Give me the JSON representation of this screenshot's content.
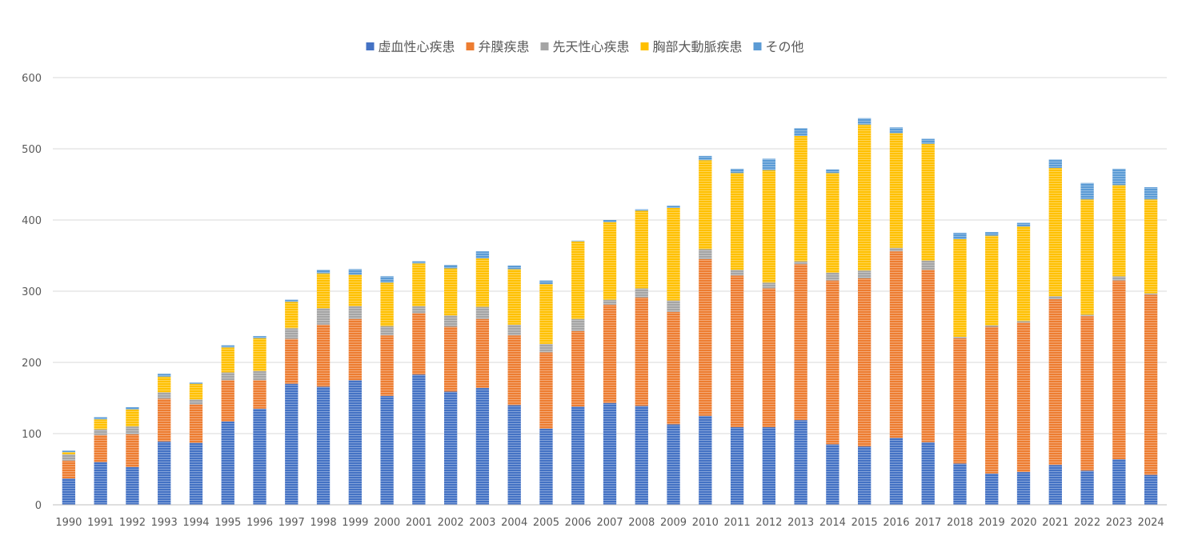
{
  "chart_data": {
    "type": "bar",
    "stacked": true,
    "title": "",
    "xlabel": "",
    "ylabel": "",
    "ylim": [
      0,
      600
    ],
    "yticks": [
      0,
      100,
      200,
      300,
      400,
      500,
      600
    ],
    "grid": true,
    "legend_position": "top",
    "categories": [
      "1990",
      "1991",
      "1992",
      "1993",
      "1994",
      "1995",
      "1996",
      "1997",
      "1998",
      "1999",
      "2000",
      "2001",
      "2002",
      "2003",
      "2004",
      "2005",
      "2006",
      "2007",
      "2008",
      "2009",
      "2010",
      "2011",
      "2012",
      "2013",
      "2014",
      "2015",
      "2016",
      "2017",
      "2018",
      "2019",
      "2020",
      "2021",
      "2022",
      "2023",
      "2024"
    ],
    "series": [
      {
        "name": "虚血性心疾患",
        "color": "#4472c4",
        "values": [
          37,
          60,
          53,
          89,
          87,
          117,
          135,
          170,
          166,
          175,
          153,
          183,
          159,
          164,
          140,
          107,
          138,
          143,
          139,
          113,
          125,
          109,
          109,
          119,
          85,
          82,
          94,
          88,
          58,
          44,
          46,
          56,
          48,
          64,
          42
        ]
      },
      {
        "name": "弁膜疾患",
        "color": "#ed7d31",
        "values": [
          25,
          38,
          46,
          60,
          54,
          58,
          40,
          63,
          87,
          86,
          85,
          86,
          91,
          97,
          98,
          107,
          106,
          138,
          152,
          158,
          220,
          213,
          195,
          219,
          230,
          236,
          262,
          242,
          176,
          206,
          210,
          233,
          217,
          251,
          253
        ]
      },
      {
        "name": "先天性心疾患",
        "color": "#a5a5a5",
        "values": [
          9,
          8,
          11,
          9,
          7,
          11,
          13,
          15,
          23,
          18,
          13,
          10,
          16,
          17,
          15,
          12,
          17,
          7,
          13,
          16,
          14,
          8,
          8,
          4,
          11,
          11,
          5,
          13,
          2,
          2,
          2,
          4,
          2,
          6,
          2
        ]
      },
      {
        "name": "胸部大動脈疾患",
        "color": "#ffc000",
        "values": [
          3,
          14,
          24,
          22,
          22,
          35,
          46,
          37,
          49,
          44,
          61,
          60,
          66,
          68,
          78,
          84,
          109,
          109,
          109,
          130,
          125,
          136,
          158,
          176,
          140,
          205,
          161,
          164,
          137,
          126,
          133,
          180,
          162,
          128,
          132
        ]
      },
      {
        "name": "その他",
        "color": "#5b9bd5",
        "values": [
          2,
          3,
          3,
          4,
          2,
          3,
          3,
          3,
          5,
          8,
          9,
          3,
          5,
          10,
          5,
          5,
          1,
          3,
          2,
          3,
          6,
          6,
          16,
          11,
          5,
          9,
          8,
          7,
          9,
          5,
          5,
          12,
          23,
          23,
          17
        ]
      }
    ]
  }
}
